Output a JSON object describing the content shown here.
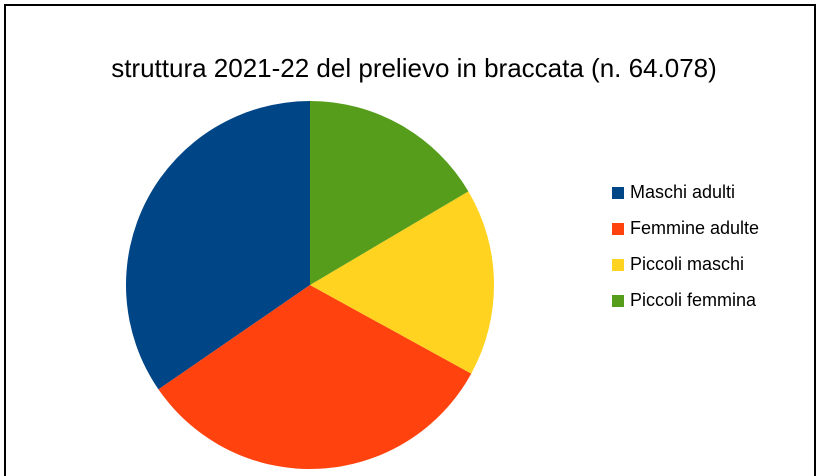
{
  "chart_data": {
    "type": "pie",
    "title": "struttura 2021-22 del prelievo in braccata (n. 64.078)",
    "categories": [
      "Maschi adulti",
      "Femmine adulte",
      "Piccoli maschi",
      "Piccoli femmina"
    ],
    "values": [
      34.6,
      32.4,
      16.5,
      16.5
    ],
    "colors": [
      "#004586",
      "#ff420e",
      "#ffd320",
      "#579d1c"
    ],
    "legend": "right"
  }
}
